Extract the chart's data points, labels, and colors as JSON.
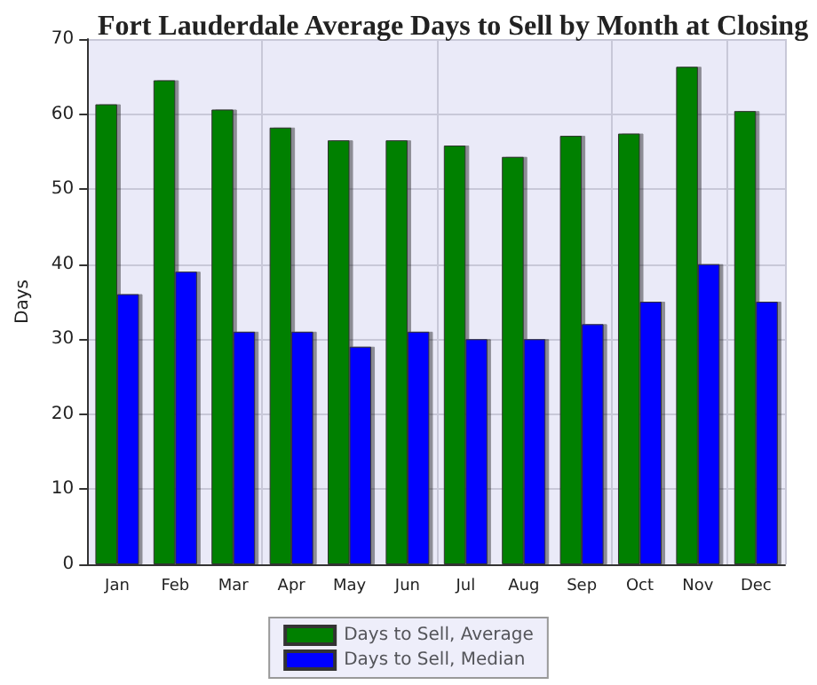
{
  "chart_data": {
    "type": "bar",
    "title": "Fort Lauderdale Average Days to Sell by Month at Closing",
    "ylabel": "Days",
    "categories": [
      "Jan",
      "Feb",
      "Mar",
      "Apr",
      "May",
      "Jun",
      "Jul",
      "Aug",
      "Sep",
      "Oct",
      "Nov",
      "Dec"
    ],
    "series": [
      {
        "name": "Days to Sell, Average",
        "color": "#008000",
        "values": [
          61.3,
          64.5,
          60.6,
          58.2,
          56.5,
          56.5,
          55.8,
          54.3,
          57.1,
          57.4,
          66.3,
          60.4
        ]
      },
      {
        "name": "Days to Sell, Median",
        "color": "#0000ff",
        "values": [
          36,
          39,
          31,
          31,
          29,
          31,
          30,
          30,
          32,
          35,
          40,
          35
        ]
      }
    ],
    "ylim": [
      0,
      70
    ],
    "yticks": [
      0,
      10,
      20,
      30,
      40,
      50,
      60,
      70
    ],
    "grid": true,
    "legend": "bottom"
  }
}
